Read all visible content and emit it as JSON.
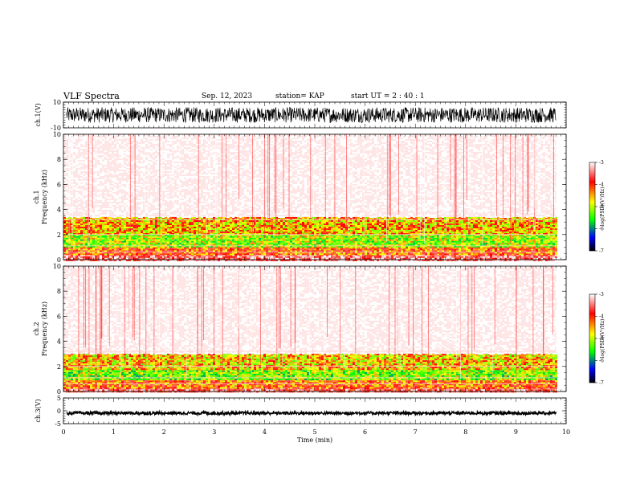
{
  "header": {
    "title": "VLF Spectra",
    "date": "Sep. 12, 2023",
    "station": "station= KAP",
    "start": "start  UT =   2 : 40 : 1"
  },
  "chart_data": [
    {
      "type": "line",
      "panel": "ch1-waveform",
      "ylabel": "ch.1(V)",
      "ylim": [
        -10,
        10
      ],
      "yticks": [
        "10",
        "-10"
      ],
      "xlim": [
        0,
        10
      ],
      "description_series": {
        "amplitude_range_V": [
          -6,
          6
        ],
        "noise": "dense"
      }
    },
    {
      "type": "heatmap",
      "panel": "ch1-spectrogram",
      "ylabel": "ch.1\nFrequency  (kHz)",
      "ylim": [
        0,
        10
      ],
      "yticks": [
        "0",
        "2",
        "4",
        "6",
        "8",
        "10"
      ],
      "xlim": [
        0,
        10
      ],
      "data_end_min": 9.8,
      "bands": [
        {
          "freq_kHz": [
            0.0,
            0.4
          ],
          "log_psd": -3.6
        },
        {
          "freq_kHz": [
            0.4,
            1.0
          ],
          "log_psd": -4.3
        },
        {
          "freq_kHz": [
            1.0,
            2.0
          ],
          "log_psd": -5.1
        },
        {
          "freq_kHz": [
            2.0,
            3.4
          ],
          "log_psd": -4.6
        },
        {
          "freq_kHz": [
            3.4,
            10.0
          ],
          "log_psd": -3.2
        }
      ],
      "colorbar": {
        "label": "log(PSD)(V²/Hz)",
        "range": [
          -7,
          -3
        ],
        "ticks": [
          "-3",
          "-4",
          "-5",
          "-6",
          "-7"
        ],
        "colors": [
          "#ffffff",
          "#ff0000",
          "#ffff00",
          "#00ff00",
          "#0000ff",
          "#000000"
        ]
      }
    },
    {
      "type": "heatmap",
      "panel": "ch2-spectrogram",
      "ylabel": "ch.2\nFrequency  (kHz)",
      "ylim": [
        0,
        10
      ],
      "yticks": [
        "0",
        "2",
        "4",
        "6",
        "8",
        "10"
      ],
      "xlim": [
        0,
        10
      ],
      "data_end_min": 9.8,
      "bands": [
        {
          "freq_kHz": [
            0.0,
            0.3
          ],
          "log_psd": -3.7
        },
        {
          "freq_kHz": [
            0.3,
            1.0
          ],
          "log_psd": -4.3
        },
        {
          "freq_kHz": [
            1.0,
            1.8
          ],
          "log_psd": -5.2
        },
        {
          "freq_kHz": [
            1.8,
            3.0
          ],
          "log_psd": -4.7
        },
        {
          "freq_kHz": [
            3.0,
            10.0
          ],
          "log_psd": -3.2
        }
      ],
      "colorbar": {
        "label": "log(PSD)(V²/Hz)",
        "range": [
          -7,
          -3
        ],
        "ticks": [
          "-3",
          "-4",
          "-5",
          "-6",
          "-7"
        ],
        "colors": [
          "#ffffff",
          "#ff0000",
          "#ffff00",
          "#00ff00",
          "#0000ff",
          "#000000"
        ]
      }
    },
    {
      "type": "line",
      "panel": "ch3-waveform",
      "ylabel": "ch.3(V)",
      "ylim": [
        -5,
        5
      ],
      "yticks": [
        "5",
        "0",
        "-5"
      ],
      "xlim": [
        0,
        10
      ],
      "description_series": {
        "amplitude_range_V": [
          -1.5,
          -0.3
        ],
        "noise": "dense"
      }
    }
  ],
  "xaxis": {
    "label": "Time  (min)",
    "ticks": [
      "0",
      "1",
      "2",
      "3",
      "4",
      "5",
      "6",
      "7",
      "8",
      "9",
      "10"
    ]
  }
}
